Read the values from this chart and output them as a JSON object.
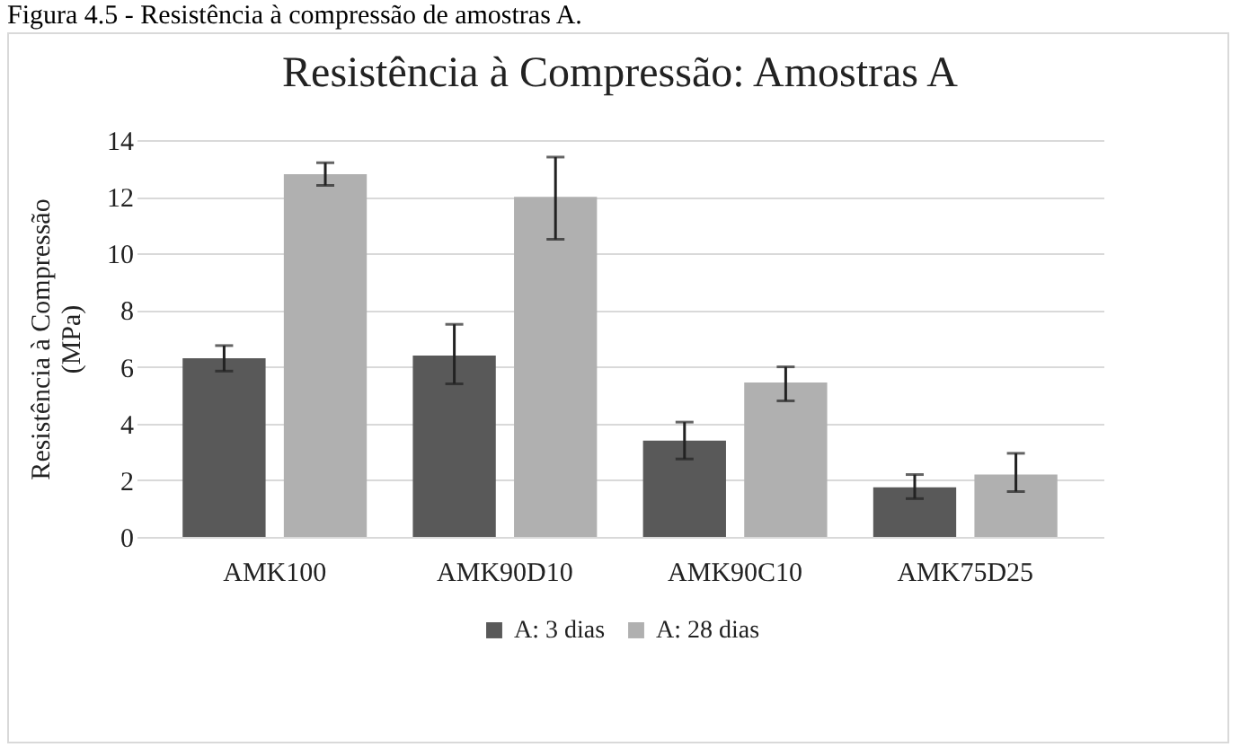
{
  "chart_data": {
    "type": "bar",
    "title": "Resistência à Compressão: Amostras A",
    "ylabel": "Resistência à Compressão (MPa)",
    "annotations": [
      "Figura 4.5 - Resistência à compressão de amostras A."
    ],
    "categories": [
      "AMK100",
      "AMK90D10",
      "AMK90C10",
      "AMK75D25"
    ],
    "series": [
      {
        "name": "A: 3 dias",
        "color": "#595959",
        "values": [
          6.3,
          6.4,
          3.4,
          1.75
        ],
        "errors": [
          [
            5.85,
            6.75
          ],
          [
            5.4,
            7.5
          ],
          [
            2.75,
            4.05
          ],
          [
            1.35,
            2.2
          ]
        ]
      },
      {
        "name": "A: 28 dias",
        "color": "#b0b0b0",
        "values": [
          12.8,
          12.0,
          5.45,
          2.2
        ],
        "errors": [
          [
            12.4,
            13.2
          ],
          [
            10.5,
            13.4
          ],
          [
            4.8,
            6.0
          ],
          [
            1.6,
            2.95
          ]
        ]
      }
    ],
    "ylim": [
      0,
      14
    ],
    "yticks": [
      0,
      2,
      4,
      6,
      8,
      10,
      12,
      14
    ],
    "grid": "y",
    "legend": "bottom"
  }
}
